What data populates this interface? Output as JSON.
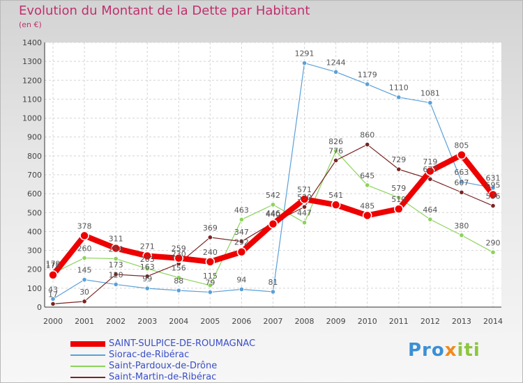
{
  "title": "Evolution du Montant de la Dette par Habitant",
  "subtitle": "(en €)",
  "brand": "Proxiti",
  "chart_data": {
    "type": "line",
    "title": "Evolution du Montant de la Dette par Habitant",
    "ylabel": "(en €)",
    "xlabel": "",
    "ylim": [
      0,
      1400
    ],
    "yticks": [
      0,
      100,
      200,
      300,
      400,
      500,
      600,
      700,
      800,
      900,
      1000,
      1100,
      1200,
      1300,
      1400
    ],
    "grid": true,
    "categories": [
      "2000",
      "2001",
      "2002",
      "2003",
      "2004",
      "2005",
      "2006",
      "2007",
      "2008",
      "2009",
      "2010",
      "2011",
      "2012",
      "2013",
      "2014"
    ],
    "series": [
      {
        "name": "SAINT-SULPICE-DE-ROUMAGNAC",
        "color": "#ee0000",
        "width": 8,
        "values": [
          170,
          378,
          311,
          271,
          259,
          240,
          292,
          440,
          571,
          541,
          485,
          519,
          719,
          805,
          595
        ],
        "labels": [
          "170",
          "378",
          "311",
          "271",
          "259",
          "240",
          "292",
          "440",
          "571",
          "541",
          "485",
          "519",
          "719",
          "805",
          "595"
        ]
      },
      {
        "name": "Siorac-de-Ribérac",
        "color": "#5aa0d8",
        "width": 1.2,
        "values": [
          43,
          145,
          120,
          99,
          88,
          79,
          94,
          81,
          1291,
          1244,
          1179,
          1110,
          1081,
          663,
          631
        ],
        "labels": [
          "43",
          "145",
          "120",
          "99",
          "88",
          "79",
          "94",
          "81",
          "1291",
          "1244",
          "1179",
          "1110",
          "1081",
          "663",
          "631"
        ]
      },
      {
        "name": "Saint-Pardoux-de-Drône",
        "color": "#8cd35a",
        "width": 1.2,
        "values": [
          179,
          260,
          256,
          203,
          156,
          115,
          463,
          542,
          447,
          826,
          645,
          579,
          464,
          380,
          290
        ],
        "labels": [
          "179",
          "260",
          "256",
          "203",
          "156",
          "115",
          "463",
          "542",
          "447",
          "826",
          "645",
          "579",
          "464",
          "380",
          "290"
        ]
      },
      {
        "name": "Saint-Martin-de-Ribérac",
        "color": "#7a2323",
        "width": 1.2,
        "values": [
          17,
          30,
          173,
          163,
          230,
          369,
          347,
          446,
          530,
          776,
          860,
          729,
          677,
          607,
          536
        ],
        "labels": [
          "17",
          "30",
          "173",
          "163",
          "230",
          "369",
          "347",
          "446",
          "530",
          "776",
          "860",
          "729",
          "677",
          "607",
          "536"
        ]
      }
    ]
  }
}
